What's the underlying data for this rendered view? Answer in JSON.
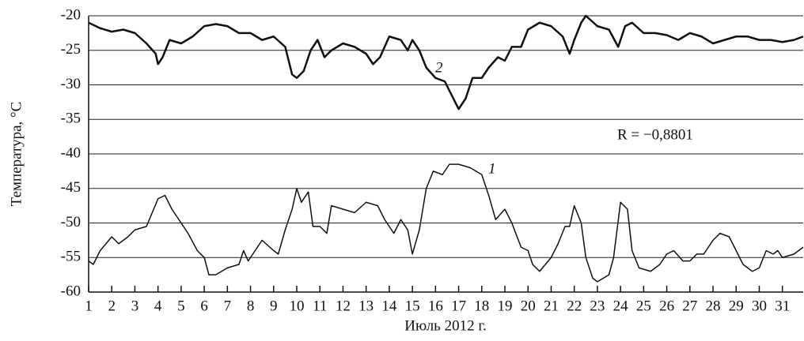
{
  "chart_data": {
    "type": "line",
    "x_label": "Июль 2012 г.",
    "y_label": "Температура, °C",
    "annotations": [
      "1",
      "2",
      "R = −0,8801"
    ],
    "xlim": [
      1,
      31.9
    ],
    "xticks": [
      1,
      2,
      3,
      4,
      5,
      6,
      7,
      8,
      9,
      10,
      11,
      12,
      13,
      14,
      15,
      16,
      17,
      18,
      19,
      20,
      21,
      22,
      23,
      24,
      25,
      26,
      27,
      28,
      29,
      30,
      31
    ],
    "ylim": [
      -60,
      -20
    ],
    "yticks": [
      -60,
      -55,
      -50,
      -45,
      -40,
      -35,
      -30,
      -25,
      -20
    ],
    "grid": true,
    "series": [
      {
        "name": "1",
        "color": "#111111",
        "width": 1.5,
        "x": [
          1,
          1.2,
          1.5,
          2,
          2.3,
          2.7,
          3,
          3.5,
          4,
          4.3,
          4.6,
          5,
          5.3,
          5.7,
          6,
          6.2,
          6.5,
          7,
          7.5,
          7.7,
          7.9,
          8.2,
          8.5,
          9,
          9.2,
          9.5,
          9.8,
          10,
          10.2,
          10.5,
          10.7,
          11,
          11.3,
          11.5,
          12,
          12.5,
          13,
          13.5,
          13.8,
          14.2,
          14.5,
          14.8,
          15,
          15.3,
          15.6,
          15.9,
          16.3,
          16.6,
          17,
          17.5,
          18,
          18.3,
          18.6,
          19,
          19.3,
          19.7,
          20,
          20.2,
          20.5,
          21,
          21.3,
          21.6,
          21.8,
          22,
          22.3,
          22.5,
          22.8,
          23,
          23.5,
          23.7,
          24,
          24.3,
          24.5,
          24.8,
          25.3,
          25.7,
          26,
          26.3,
          26.7,
          27,
          27.3,
          27.6,
          28,
          28.3,
          28.7,
          29,
          29.3,
          29.7,
          30,
          30.3,
          30.6,
          30.8,
          31,
          31.5,
          31.9
        ],
        "values": [
          -55.5,
          -56,
          -54,
          -52,
          -53,
          -52,
          -51,
          -50.5,
          -46.5,
          -46,
          -48,
          -50,
          -51.5,
          -54,
          -55,
          -57.5,
          -57.5,
          -56.5,
          -56,
          -54,
          -55.5,
          -54,
          -52.5,
          -54,
          -54.5,
          -51,
          -48,
          -45,
          -47,
          -45.5,
          -50.5,
          -50.5,
          -51.5,
          -47.5,
          -48,
          -48.5,
          -47,
          -47.5,
          -49.5,
          -51.5,
          -49.5,
          -51,
          -54.5,
          -51,
          -45,
          -42.5,
          -43,
          -41.5,
          -41.5,
          -42,
          -43,
          -46,
          -49.5,
          -48,
          -50,
          -53.5,
          -54,
          -56,
          -57,
          -55,
          -53,
          -50.5,
          -50.5,
          -47.5,
          -50,
          -55,
          -58,
          -58.5,
          -57.5,
          -55,
          -47,
          -48,
          -54,
          -56.5,
          -57,
          -56,
          -54.5,
          -54,
          -55.5,
          -55.5,
          -54.5,
          -54.5,
          -52.5,
          -51.5,
          -52,
          -54,
          -56,
          -57,
          -56.5,
          -54,
          -54.5,
          -54,
          -55,
          -54.5,
          -53.5
        ]
      },
      {
        "name": "2",
        "color": "#111111",
        "width": 2.5,
        "x": [
          1,
          1.5,
          2,
          2.5,
          3,
          3.5,
          3.9,
          4,
          4.2,
          4.5,
          5,
          5.5,
          6,
          6.5,
          7,
          7.5,
          8,
          8.5,
          9,
          9.5,
          9.8,
          10,
          10.3,
          10.6,
          10.9,
          11.2,
          11.5,
          12,
          12.5,
          13,
          13.3,
          13.6,
          14,
          14.5,
          14.8,
          15,
          15.3,
          15.6,
          16,
          16.4,
          16.7,
          17,
          17.3,
          17.6,
          18,
          18.3,
          18.7,
          19,
          19.3,
          19.7,
          20,
          20.5,
          21,
          21.5,
          21.8,
          22,
          22.3,
          22.5,
          23,
          23.5,
          23.9,
          24.2,
          24.5,
          25,
          25.5,
          26,
          26.5,
          27,
          27.5,
          28,
          28.5,
          29,
          29.5,
          30,
          30.5,
          31,
          31.5,
          31.9
        ],
        "values": [
          -21,
          -21.8,
          -22.3,
          -22,
          -22.5,
          -24,
          -25.5,
          -27,
          -26,
          -23.5,
          -24,
          -23,
          -21.5,
          -21.2,
          -21.5,
          -22.5,
          -22.5,
          -23.5,
          -23,
          -24.5,
          -28.5,
          -29,
          -28,
          -25,
          -23.5,
          -26,
          -25,
          -24,
          -24.5,
          -25.5,
          -27,
          -26,
          -23,
          -23.5,
          -25,
          -23.5,
          -25,
          -27.5,
          -29,
          -29.5,
          -31.5,
          -33.5,
          -32,
          -29,
          -29,
          -27.5,
          -26,
          -26.5,
          -24.5,
          -24.5,
          -22,
          -21,
          -21.5,
          -23,
          -25.5,
          -23.5,
          -21,
          -20,
          -21.5,
          -22,
          -24.5,
          -21.5,
          -21,
          -22.5,
          -22.5,
          -22.8,
          -23.5,
          -22.5,
          -23,
          -24,
          -23.5,
          -23,
          -23,
          -23.5,
          -23.5,
          -23.8,
          -23.5,
          -23
        ]
      }
    ]
  }
}
